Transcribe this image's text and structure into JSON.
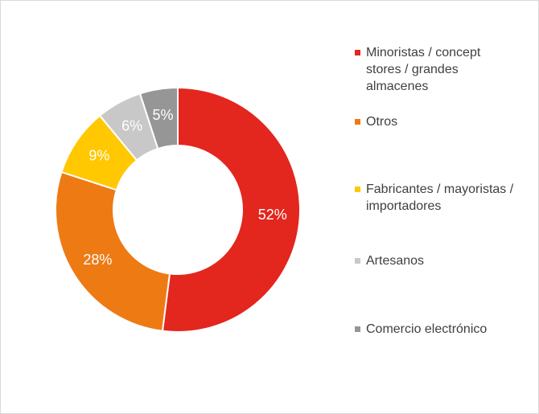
{
  "chart_data": {
    "type": "donut",
    "categories": [
      "Minoristas / concept stores / grandes almacenes",
      "Otros",
      "Fabricantes / mayoristas / importadores",
      "Artesanos",
      "Comercio electrónico"
    ],
    "values": [
      52,
      28,
      9,
      6,
      5
    ],
    "value_labels": [
      "52%",
      "28%",
      "9%",
      "6%",
      "5%"
    ],
    "colors": [
      "#e3261e",
      "#ee7a14",
      "#ffc800",
      "#c8c8c8",
      "#969696"
    ],
    "legend": "right"
  }
}
